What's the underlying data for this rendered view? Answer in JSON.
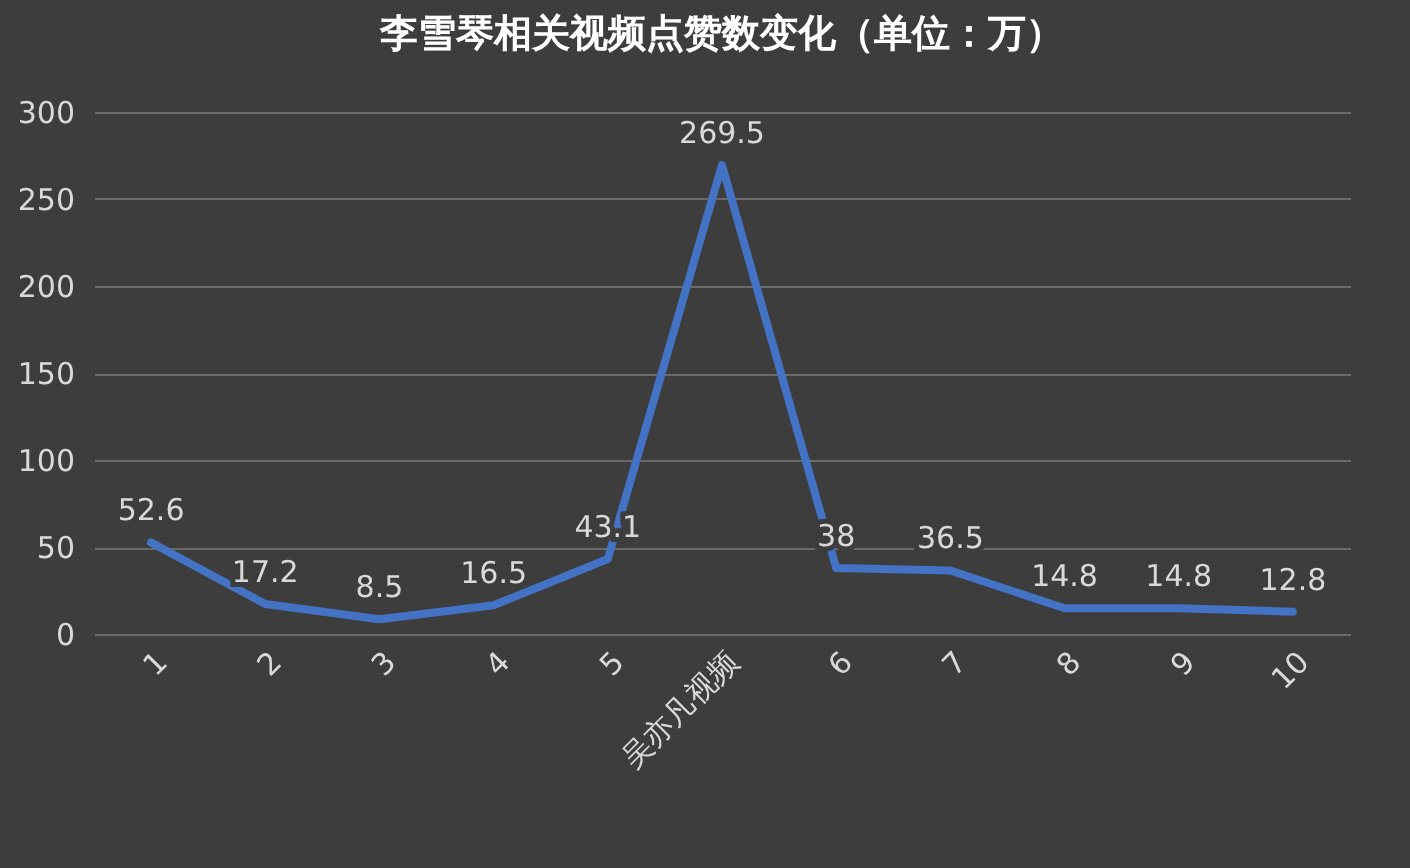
{
  "chart_data": {
    "type": "line",
    "title": "李雪琴相关视频点赞数变化（单位：万）",
    "categories": [
      "1",
      "2",
      "3",
      "4",
      "5",
      "吴亦凡视频",
      "6",
      "7",
      "8",
      "9",
      "10"
    ],
    "series": [
      {
        "color": "#4472c4",
        "values": [
          52.6,
          17.2,
          8.5,
          16.5,
          43.1,
          269.5,
          38,
          36.5,
          14.8,
          14.8,
          12.8
        ]
      }
    ],
    "ylim": [
      0,
      300
    ],
    "yticks": [
      0,
      50,
      100,
      150,
      200,
      250,
      300
    ],
    "grid": "y",
    "data_labels": true,
    "marker": "none",
    "line_style": "solid"
  }
}
